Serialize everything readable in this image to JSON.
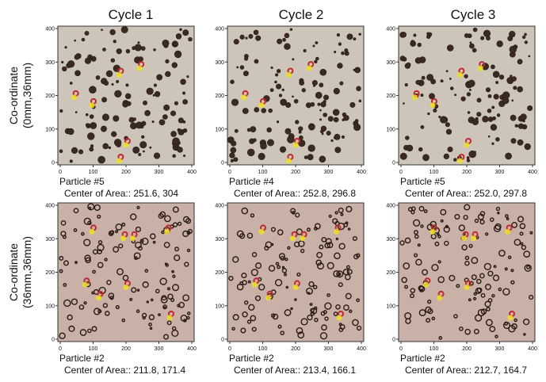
{
  "columns": [
    "Cycle 1",
    "Cycle 2",
    "Cycle 3"
  ],
  "ticks": [
    0,
    100,
    200,
    300,
    400
  ],
  "rows": [
    {
      "label": [
        "Co-ordinate",
        "(0mm,36mm)"
      ],
      "panels": [
        {
          "particle": "Particle #5",
          "center": "Center of Area:: 251.6, 304"
        },
        {
          "particle": "Particle #4",
          "center": "Center of Area:: 252.8, 296.8"
        },
        {
          "particle": "Particle #5",
          "center": "Center of Area:: 252.0, 297.8"
        }
      ]
    },
    {
      "label": [
        "Co-ordinate",
        "(36mm,36mm)"
      ],
      "panels": [
        {
          "particle": "Particle #2",
          "center": "Center of Area:: 211.8, 171.4"
        },
        {
          "particle": "Particle #2",
          "center": "Center of Area:: 213.4, 166.1"
        },
        {
          "particle": "Particle #2",
          "center": "Center of Area:: 212.7, 164.7"
        }
      ]
    }
  ]
}
